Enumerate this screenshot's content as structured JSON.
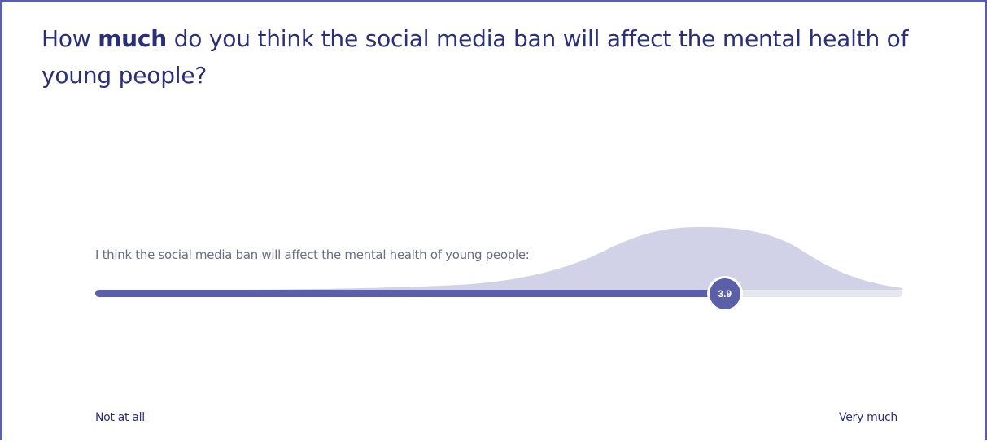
{
  "question": {
    "before": "How ",
    "emphasis": "much",
    "after": " do you think the social media ban will affect the mental health of young people?"
  },
  "slider": {
    "statement": "I think the social media ban will affect the mental health of young people:",
    "value": 3.9,
    "value_label": "3.9",
    "min": 0,
    "max": 5,
    "min_label": "Not at all",
    "max_label": "Very much"
  },
  "colors": {
    "accent": "#5b5fa8",
    "distribution": "#cfd0e6",
    "track": "#e6e6f0",
    "heading": "#2b2f73"
  }
}
